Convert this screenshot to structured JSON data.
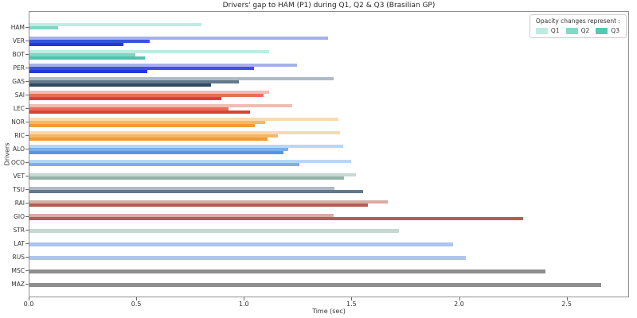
{
  "legend": {
    "title": "Opacity changes represent :",
    "entries": [
      {
        "label": "Q1",
        "color": "#bfeae0"
      },
      {
        "label": "Q2",
        "color": "#84d8c6"
      },
      {
        "label": "Q3",
        "color": "#53c9b0"
      }
    ]
  },
  "chart_data": {
    "type": "bar",
    "orientation": "horizontal",
    "title": "Drivers' gap to HAM (P1) during Q1, Q2 & Q3 (Brasilian GP)",
    "xlabel": "Time (sec)",
    "ylabel": "Drivers",
    "xlim": [
      0,
      2.79
    ],
    "x_ticks": [
      "0.0",
      "0.5",
      "1.0",
      "1.5",
      "2.0",
      "2.5"
    ],
    "grid": false,
    "legend_position": "upper right",
    "sessions": [
      "Q1",
      "Q2",
      "Q3"
    ],
    "drivers": [
      {
        "code": "HAM",
        "gaps": {
          "Q1": 0.799,
          "Q2": 0.134,
          "Q3": 0.0
        },
        "colors": {
          "Q1": "#c0ebe2",
          "Q2": "#7fd6c3",
          "Q3": "#4cc6ad"
        }
      },
      {
        "code": "VER",
        "gaps": {
          "Q1": 1.389,
          "Q2": 0.56,
          "Q3": 0.438
        },
        "colors": {
          "Q1": "#a5b1ea",
          "Q2": "#3a52e0",
          "Q3": "#2438d8"
        }
      },
      {
        "code": "BOT",
        "gaps": {
          "Q1": 1.114,
          "Q2": 0.492,
          "Q3": 0.535
        },
        "colors": {
          "Q1": "#c0ebe2",
          "Q2": "#7fd6c3",
          "Q3": "#4cc6ad"
        }
      },
      {
        "code": "PER",
        "gaps": {
          "Q1": 1.244,
          "Q2": 1.043,
          "Q3": 0.549
        },
        "colors": {
          "Q1": "#a5b1ea",
          "Q2": "#3a52e0",
          "Q3": "#2438d8"
        }
      },
      {
        "code": "GAS",
        "gaps": {
          "Q1": 1.415,
          "Q2": 0.972,
          "Q3": 0.843
        },
        "colors": {
          "Q1": "#aebac5",
          "Q2": "#63788a",
          "Q3": "#2f4a63"
        }
      },
      {
        "code": "SAI",
        "gaps": {
          "Q1": 1.115,
          "Q2": 1.088,
          "Q3": 0.892
        },
        "colors": {
          "Q1": "#f2bcb3",
          "Q2": "#e56f5d",
          "Q3": "#d84431"
        }
      },
      {
        "code": "LEC",
        "gaps": {
          "Q1": 1.222,
          "Q2": 0.926,
          "Q3": 1.026
        },
        "colors": {
          "Q1": "#f2bcb3",
          "Q2": "#e56f5d",
          "Q3": "#d84431"
        }
      },
      {
        "code": "NOR",
        "gaps": {
          "Q1": 1.437,
          "Q2": 1.096,
          "Q3": 1.046
        },
        "colors": {
          "Q1": "#f9d9b0",
          "Q2": "#f4b866",
          "Q3": "#f09a38"
        }
      },
      {
        "code": "RIC",
        "gaps": {
          "Q1": 1.444,
          "Q2": 1.154,
          "Q3": 1.105
        },
        "colors": {
          "Q1": "#f9d9b0",
          "Q2": "#f4b866",
          "Q3": "#f09a38"
        }
      },
      {
        "code": "ALO",
        "gaps": {
          "Q1": 1.457,
          "Q2": 1.204,
          "Q3": 1.179
        },
        "colors": {
          "Q1": "#b7d7f6",
          "Q2": "#79b0ef",
          "Q3": "#4f97ea"
        }
      },
      {
        "code": "OCO",
        "gaps": {
          "Q1": 1.496,
          "Q2": 1.255,
          "Q3": null
        },
        "colors": {
          "Q1": "#b7d7f6",
          "Q2": "#79b0ef",
          "Q3": "#4f97ea"
        }
      },
      {
        "code": "VET",
        "gaps": {
          "Q1": 1.516,
          "Q2": 1.462,
          "Q3": null
        },
        "colors": {
          "Q1": "#c6d8d0",
          "Q2": "#92b3a6",
          "Q3": "#6d9989"
        }
      },
      {
        "code": "TSU",
        "gaps": {
          "Q1": 1.418,
          "Q2": 1.549,
          "Q3": null
        },
        "colors": {
          "Q1": "#aebac5",
          "Q2": "#63788a",
          "Q3": "#2f4a63"
        }
      },
      {
        "code": "RAI",
        "gaps": {
          "Q1": 1.666,
          "Q2": 1.571,
          "Q3": null
        },
        "colors": {
          "Q1": "#d9aba3",
          "Q2": "#b25e52",
          "Q3": "#983527"
        }
      },
      {
        "code": "GIO",
        "gaps": {
          "Q1": 1.414,
          "Q2": 2.293,
          "Q3": null
        },
        "colors": {
          "Q1": "#d9aba3",
          "Q2": "#b25e52",
          "Q3": "#983527"
        }
      },
      {
        "code": "STR",
        "gaps": {
          "Q1": 1.717,
          "Q2": null,
          "Q3": null
        },
        "colors": {
          "Q1": "#c6d8d0",
          "Q2": "#92b3a6",
          "Q3": "#6d9989"
        }
      },
      {
        "code": "LAT",
        "gaps": {
          "Q1": 1.97,
          "Q2": null,
          "Q3": null
        },
        "colors": {
          "Q1": "#adc6ef",
          "Q2": "#7da4e8",
          "Q3": "#2e5cc5"
        }
      },
      {
        "code": "RUS",
        "gaps": {
          "Q1": 2.026,
          "Q2": null,
          "Q3": null
        },
        "colors": {
          "Q1": "#adc6ef",
          "Q2": "#7da4e8",
          "Q3": "#2e5cc5"
        }
      },
      {
        "code": "MSC",
        "gaps": {
          "Q1": 2.396,
          "Q2": null,
          "Q3": null
        },
        "colors": {
          "Q1": "#8e8e8e",
          "Q2": "#6e6e6e",
          "Q3": "#4a4a4a"
        }
      },
      {
        "code": "MAZ",
        "gaps": {
          "Q1": 2.655,
          "Q2": null,
          "Q3": null
        },
        "colors": {
          "Q1": "#8e8e8e",
          "Q2": "#6e6e6e",
          "Q3": "#4a4a4a"
        }
      }
    ]
  }
}
